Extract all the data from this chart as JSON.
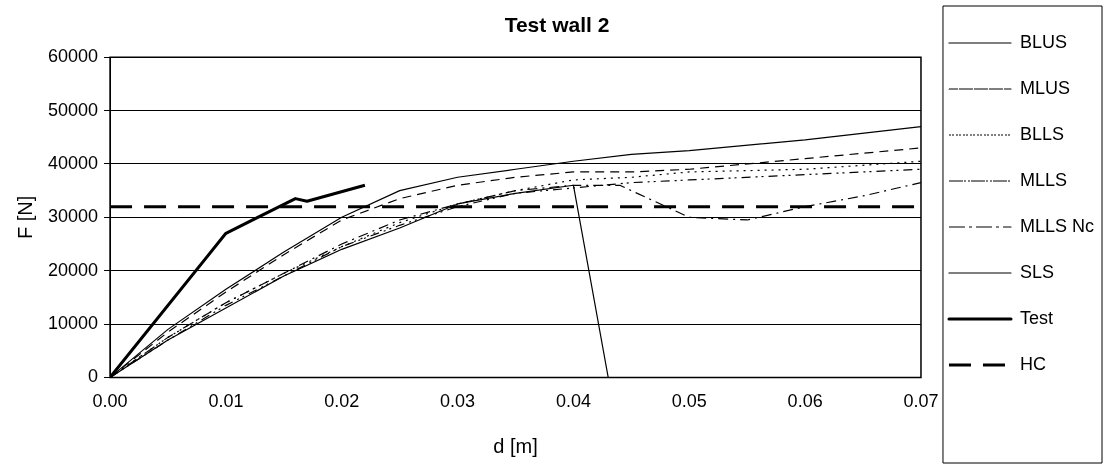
{
  "chart_data": {
    "type": "line",
    "title": "Test wall 2",
    "xlabel": "d [m]",
    "ylabel": "F [N]",
    "xlim": [
      0,
      0.07
    ],
    "xticks": [
      {
        "value": 0,
        "label": "0.00"
      },
      {
        "value": 0.01,
        "label": "0.01"
      },
      {
        "value": 0.02,
        "label": "0.02"
      },
      {
        "value": 0.03,
        "label": "0.03"
      },
      {
        "value": 0.04,
        "label": "0.04"
      },
      {
        "value": 0.05,
        "label": "0.05"
      },
      {
        "value": 0.06,
        "label": "0.06"
      },
      {
        "value": 0.07,
        "label": "0.07"
      }
    ],
    "ylim": [
      0,
      60000
    ],
    "yticks": [
      0,
      10000,
      20000,
      30000,
      40000,
      50000,
      60000
    ],
    "grid": "y",
    "legend": "right",
    "marker": "none",
    "series": [
      {
        "name": "BLUS",
        "color": "#000000",
        "line_style": "solid",
        "x": [
          0,
          0.005,
          0.01,
          0.015,
          0.02,
          0.025,
          0.03,
          0.035,
          0.04,
          0.045,
          0.05,
          0.06,
          0.07
        ],
        "values": [
          0,
          9000,
          16500,
          23500,
          30000,
          35000,
          37500,
          39000,
          40500,
          41800,
          42500,
          44500,
          47000
        ]
      },
      {
        "name": "MLUS",
        "color": "#000000",
        "line_style": "dashed",
        "x": [
          0,
          0.005,
          0.01,
          0.015,
          0.02,
          0.025,
          0.03,
          0.035,
          0.04,
          0.045,
          0.05,
          0.06,
          0.07
        ],
        "values": [
          0,
          8500,
          16000,
          23000,
          29500,
          33500,
          36000,
          37500,
          38500,
          38500,
          39000,
          41000,
          43000
        ]
      },
      {
        "name": "BLLS",
        "color": "#000000",
        "line_style": "dotted",
        "x": [
          0,
          0.005,
          0.01,
          0.015,
          0.02,
          0.025,
          0.03,
          0.035,
          0.04,
          0.045,
          0.05,
          0.06,
          0.07
        ],
        "values": [
          0,
          7500,
          14000,
          19500,
          24500,
          29000,
          32500,
          35000,
          37000,
          37500,
          38500,
          39000,
          40500
        ]
      },
      {
        "name": "MLLS",
        "color": "#000000",
        "line_style": "dashed",
        "x": [
          0,
          0.005,
          0.01,
          0.015,
          0.02,
          0.025,
          0.03,
          0.035,
          0.04,
          0.044,
          0.05,
          0.055,
          0.06,
          0.065,
          0.07
        ],
        "values": [
          0,
          7500,
          14000,
          19500,
          25000,
          29500,
          32500,
          35000,
          36000,
          36000,
          30000,
          29500,
          32000,
          34000,
          36500
        ]
      },
      {
        "name": "MLLS Nc",
        "color": "#000000",
        "line_style": "dashed",
        "x": [
          0,
          0.005,
          0.01,
          0.015,
          0.02,
          0.025,
          0.03,
          0.035,
          0.04,
          0.045,
          0.05,
          0.06,
          0.07
        ],
        "values": [
          0,
          7000,
          13500,
          19000,
          24500,
          28500,
          32000,
          34500,
          35500,
          36500,
          37000,
          38000,
          39000
        ]
      },
      {
        "name": "SLS",
        "color": "#000000",
        "line_style": "solid",
        "x": [
          0,
          0.005,
          0.01,
          0.015,
          0.02,
          0.025,
          0.03,
          0.035,
          0.04,
          0.043
        ],
        "values": [
          0,
          7000,
          13000,
          19000,
          24000,
          28000,
          32500,
          34500,
          36000,
          0
        ]
      },
      {
        "name": "Test",
        "color": "#000000",
        "line_style": "solid",
        "x": [
          0,
          0.01,
          0.016,
          0.017,
          0.022
        ],
        "values": [
          0,
          27000,
          33500,
          33000,
          36000
        ]
      },
      {
        "name": "HC",
        "color": "#000000",
        "line_style": "dashed",
        "x": [
          0,
          0.07
        ],
        "values": [
          32000,
          32000
        ]
      }
    ]
  }
}
